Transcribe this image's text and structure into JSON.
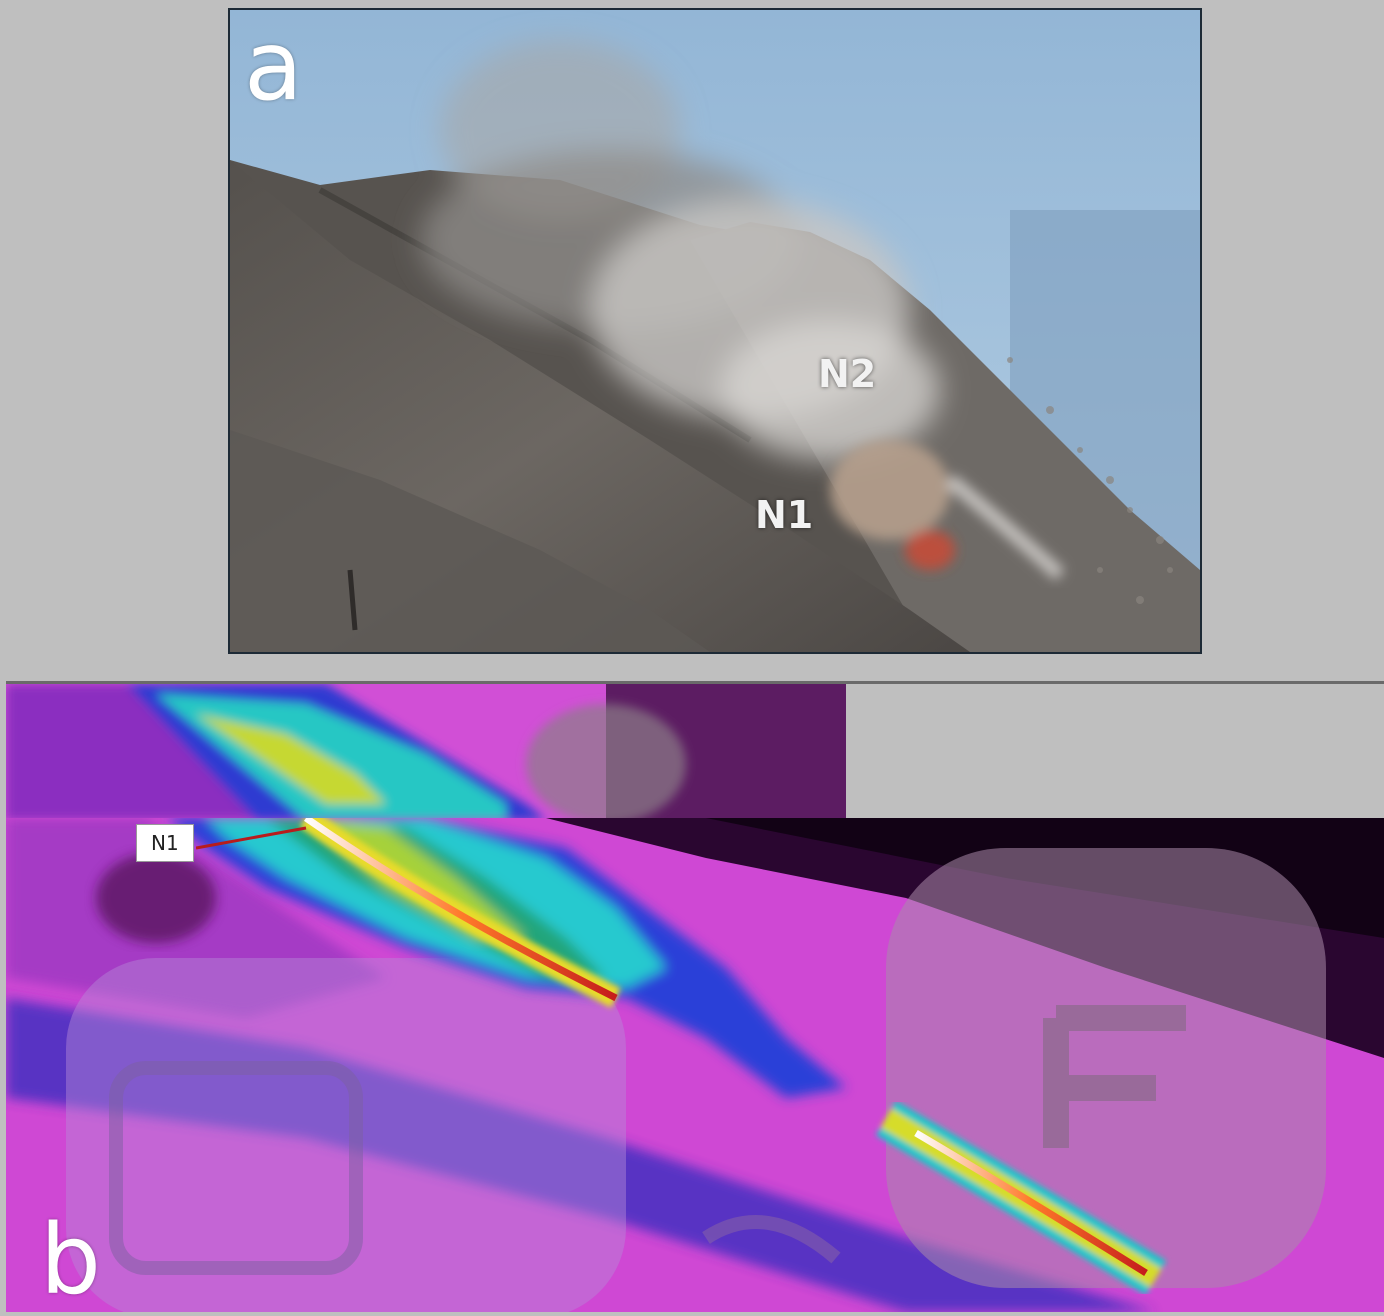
{
  "panel_a": {
    "letter": "a",
    "labels": {
      "n2": "N2",
      "n1": "N1"
    }
  },
  "panel_b": {
    "letter": "b",
    "callout": "N1"
  }
}
